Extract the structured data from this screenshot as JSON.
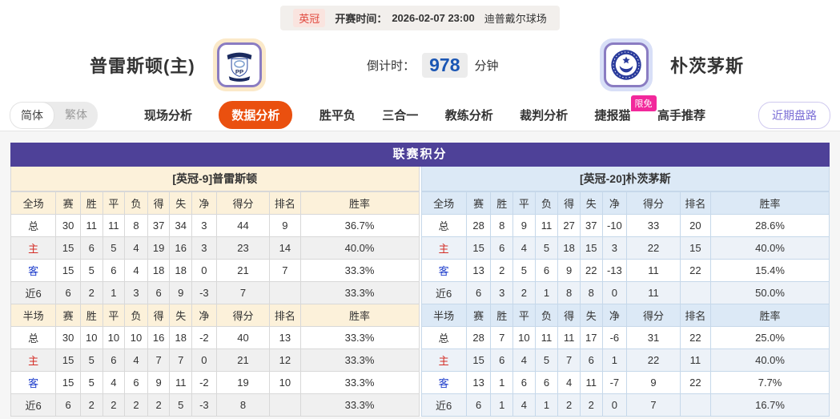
{
  "kickoff": {
    "league_badge": "英冠",
    "label": "开赛时间：",
    "datetime": "2026-02-07 23:00",
    "venue": "迪普戴尔球场"
  },
  "teams": {
    "home_name": "普雷斯顿(主)",
    "home_logo_initials": "PP",
    "away_name": "朴茨茅斯"
  },
  "countdown": {
    "label": "倒计时：",
    "minutes": "978",
    "unit": "分钟"
  },
  "nav": {
    "lang": {
      "simplified": "简体",
      "traditional": "繁体"
    },
    "tabs": [
      {
        "label": "现场分析",
        "active": false
      },
      {
        "label": "数据分析",
        "active": true
      },
      {
        "label": "胜平负",
        "active": false
      },
      {
        "label": "三合一",
        "active": false
      },
      {
        "label": "教练分析",
        "active": false
      },
      {
        "label": "裁判分析",
        "active": false
      },
      {
        "label": "捷报猫",
        "active": false,
        "badge": "限免"
      },
      {
        "label": "高手推荐",
        "active": false
      }
    ],
    "recent_trend_button": "近期盘路"
  },
  "colors": {
    "accent_orange": "#ea500f",
    "purple_header": "#4e4198",
    "badge_pink": "#f2289b",
    "home_header_bg": "#fcf1da",
    "away_header_bg": "#dce9f6",
    "home_row_red": "#d42d26",
    "away_row_blue": "#1f3ecc",
    "countdown_blue": "#1b56b4"
  },
  "league_table": {
    "title": "联赛积分",
    "columns_full": [
      "全场",
      "赛",
      "胜",
      "平",
      "负",
      "得",
      "失",
      "净",
      "得分",
      "排名",
      "胜率"
    ],
    "columns_half": [
      "半场",
      "赛",
      "胜",
      "平",
      "负",
      "得",
      "失",
      "净",
      "得分",
      "排名",
      "胜率"
    ],
    "home": {
      "section_title": "[英冠-9]普雷斯顿",
      "full": [
        {
          "label": "总",
          "cells": [
            "30",
            "11",
            "11",
            "8",
            "37",
            "34",
            "3",
            "44",
            "9",
            "36.7%"
          ]
        },
        {
          "label": "主",
          "cells": [
            "15",
            "6",
            "5",
            "4",
            "19",
            "16",
            "3",
            "23",
            "14",
            "40.0%"
          ]
        },
        {
          "label": "客",
          "cells": [
            "15",
            "5",
            "6",
            "4",
            "18",
            "18",
            "0",
            "21",
            "7",
            "33.3%"
          ]
        },
        {
          "label": "近6",
          "cells": [
            "6",
            "2",
            "1",
            "3",
            "6",
            "9",
            "-3",
            "7",
            "",
            "33.3%"
          ]
        }
      ],
      "half": [
        {
          "label": "总",
          "cells": [
            "30",
            "10",
            "10",
            "10",
            "16",
            "18",
            "-2",
            "40",
            "13",
            "33.3%"
          ]
        },
        {
          "label": "主",
          "cells": [
            "15",
            "5",
            "6",
            "4",
            "7",
            "7",
            "0",
            "21",
            "12",
            "33.3%"
          ]
        },
        {
          "label": "客",
          "cells": [
            "15",
            "5",
            "4",
            "6",
            "9",
            "11",
            "-2",
            "19",
            "10",
            "33.3%"
          ]
        },
        {
          "label": "近6",
          "cells": [
            "6",
            "2",
            "2",
            "2",
            "2",
            "5",
            "-3",
            "8",
            "",
            "33.3%"
          ]
        }
      ]
    },
    "away": {
      "section_title": "[英冠-20]朴茨茅斯",
      "full": [
        {
          "label": "总",
          "cells": [
            "28",
            "8",
            "9",
            "11",
            "27",
            "37",
            "-10",
            "33",
            "20",
            "28.6%"
          ]
        },
        {
          "label": "主",
          "cells": [
            "15",
            "6",
            "4",
            "5",
            "18",
            "15",
            "3",
            "22",
            "15",
            "40.0%"
          ]
        },
        {
          "label": "客",
          "cells": [
            "13",
            "2",
            "5",
            "6",
            "9",
            "22",
            "-13",
            "11",
            "22",
            "15.4%"
          ]
        },
        {
          "label": "近6",
          "cells": [
            "6",
            "3",
            "2",
            "1",
            "8",
            "8",
            "0",
            "11",
            "",
            "50.0%"
          ]
        }
      ],
      "half": [
        {
          "label": "总",
          "cells": [
            "28",
            "7",
            "10",
            "11",
            "11",
            "17",
            "-6",
            "31",
            "22",
            "25.0%"
          ]
        },
        {
          "label": "主",
          "cells": [
            "15",
            "6",
            "4",
            "5",
            "7",
            "6",
            "1",
            "22",
            "11",
            "40.0%"
          ]
        },
        {
          "label": "客",
          "cells": [
            "13",
            "1",
            "6",
            "6",
            "4",
            "11",
            "-7",
            "9",
            "22",
            "7.7%"
          ]
        },
        {
          "label": "近6",
          "cells": [
            "6",
            "1",
            "4",
            "1",
            "2",
            "2",
            "0",
            "7",
            "",
            "16.7%"
          ]
        }
      ]
    }
  }
}
